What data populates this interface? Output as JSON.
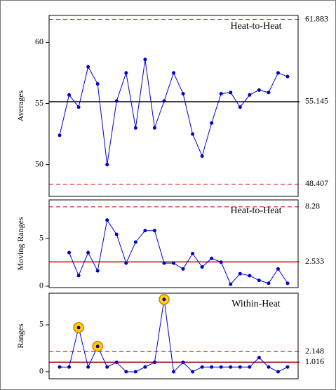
{
  "chart_data": [
    {
      "type": "line",
      "title": "Heat-to-Heat",
      "y_label": "Averages",
      "color": "#0000cc",
      "values": [
        52.4,
        55.7,
        54.7,
        58.0,
        56.6,
        50.0,
        55.2,
        57.5,
        53.0,
        58.6,
        53.0,
        55.2,
        57.5,
        55.8,
        52.5,
        50.7,
        53.4,
        55.8,
        55.9,
        54.7,
        55.7,
        56.1,
        55.9,
        57.5,
        57.2
      ],
      "ylim": [
        47.4,
        62.2
      ],
      "yticks": [
        50,
        55,
        60
      ],
      "limits": [
        {
          "value": 61.883,
          "color": "#cc0000",
          "dashed": true
        },
        {
          "value": 55.145,
          "color": "#000000",
          "dashed": false
        },
        {
          "value": 48.407,
          "color": "#cc0000",
          "dashed": true
        }
      ]
    },
    {
      "type": "line",
      "title": "Heat-to-Heat",
      "y_label": "Moving Ranges",
      "color": "#0000cc",
      "values": [
        null,
        3.5,
        1.1,
        3.5,
        1.6,
        6.9,
        5.4,
        2.4,
        4.6,
        5.8,
        5.8,
        2.4,
        2.4,
        1.8,
        3.4,
        2.0,
        2.9,
        2.5,
        0.2,
        1.3,
        1.1,
        0.6,
        0.3,
        1.8,
        0.3
      ],
      "ylim": [
        -0.15,
        9.0
      ],
      "yticks": [
        0,
        5
      ],
      "limits": [
        {
          "value": 8.28,
          "color": "#cc0000",
          "dashed": true
        },
        {
          "value": 2.533,
          "color": "#cc0000",
          "dashed": false
        }
      ]
    },
    {
      "type": "line",
      "title": "Within-Heat",
      "y_label": "Ranges",
      "color": "#0000cc",
      "values": [
        0.5,
        0.5,
        4.7,
        0.5,
        2.7,
        0.5,
        1.0,
        0.0,
        0.0,
        0.5,
        1.0,
        7.7,
        0.0,
        1.0,
        0.0,
        0.5,
        0.5,
        0.5,
        0.5,
        0.5,
        0.5,
        1.5,
        0.5,
        0.0,
        0.5
      ],
      "ylim": [
        -0.75,
        8.36
      ],
      "yticks": [
        0,
        5
      ],
      "highlighted": [
        2,
        4,
        11
      ],
      "limits": [
        {
          "value": 2.148,
          "color": "#cc0000",
          "dashed": true
        },
        {
          "value": 1.016,
          "color": "#880000",
          "dashed": false
        }
      ]
    }
  ]
}
